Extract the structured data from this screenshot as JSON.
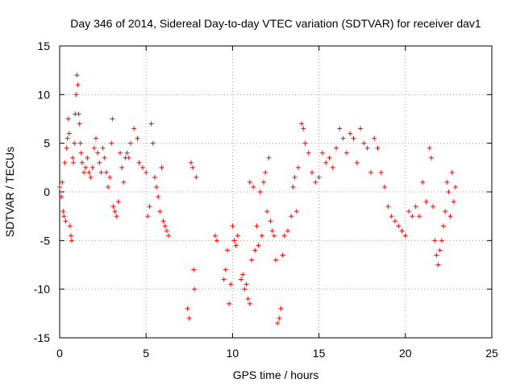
{
  "chart_data": {
    "type": "scatter",
    "title": "Day 346 of 2014, Sidereal Day-to-day VTEC variation (SDTVAR) for receiver dav1",
    "xlabel": "GPS time / hours",
    "ylabel": "SDTVAR / TECUs",
    "xlim": [
      0,
      25
    ],
    "ylim": [
      -15,
      15
    ],
    "xticks": [
      "0",
      "5",
      "10",
      "15",
      "20",
      "25"
    ],
    "yticks": [
      "-15",
      "-10",
      "-5",
      "0",
      "5",
      "10",
      "15"
    ],
    "grid": true,
    "marker": "+",
    "color": "#ff0000",
    "series": [
      {
        "name": "dav1",
        "points": [
          [
            0.0,
            0.5
          ],
          [
            0.1,
            -0.5
          ],
          [
            0.15,
            1.0
          ],
          [
            0.2,
            -2.0
          ],
          [
            0.25,
            -2.5
          ],
          [
            0.3,
            3.0
          ],
          [
            0.35,
            -3.0
          ],
          [
            0.4,
            4.5
          ],
          [
            0.45,
            5.5
          ],
          [
            0.5,
            7.5
          ],
          [
            0.55,
            6.0
          ],
          [
            0.6,
            -3.5
          ],
          [
            0.65,
            -4.5
          ],
          [
            0.7,
            -5.0
          ],
          [
            0.75,
            3.5
          ],
          [
            0.8,
            3.0
          ],
          [
            0.85,
            5.0
          ],
          [
            0.9,
            8.0
          ],
          [
            0.95,
            10.0
          ],
          [
            1.0,
            12.0
          ],
          [
            1.05,
            11.0
          ],
          [
            1.1,
            8.0
          ],
          [
            1.15,
            7.0
          ],
          [
            1.2,
            5.0
          ],
          [
            1.25,
            4.0
          ],
          [
            1.3,
            3.0
          ],
          [
            1.4,
            2.0
          ],
          [
            1.5,
            2.5
          ],
          [
            1.6,
            3.5
          ],
          [
            1.7,
            2.0
          ],
          [
            1.8,
            1.5
          ],
          [
            1.9,
            2.5
          ],
          [
            2.0,
            4.5
          ],
          [
            2.1,
            5.5
          ],
          [
            2.2,
            4.0
          ],
          [
            2.3,
            3.0
          ],
          [
            2.4,
            2.0
          ],
          [
            2.5,
            4.5
          ],
          [
            2.6,
            3.5
          ],
          [
            2.7,
            2.0
          ],
          [
            2.8,
            0.5
          ],
          [
            2.9,
            1.5
          ],
          [
            3.0,
            5.0
          ],
          [
            3.05,
            7.5
          ],
          [
            3.1,
            -1.5
          ],
          [
            3.2,
            -2.0
          ],
          [
            3.3,
            -2.5
          ],
          [
            3.4,
            -1.0
          ],
          [
            3.5,
            4.0
          ],
          [
            3.6,
            2.5
          ],
          [
            3.7,
            1.0
          ],
          [
            3.8,
            3.5
          ],
          [
            3.9,
            4.0
          ],
          [
            4.0,
            3.5
          ],
          [
            4.1,
            5.0
          ],
          [
            4.3,
            6.5
          ],
          [
            4.5,
            5.5
          ],
          [
            4.6,
            3.0
          ],
          [
            4.8,
            2.5
          ],
          [
            5.0,
            2.0
          ],
          [
            5.1,
            -2.5
          ],
          [
            5.2,
            -1.5
          ],
          [
            5.3,
            7.0
          ],
          [
            5.4,
            5.0
          ],
          [
            5.5,
            1.5
          ],
          [
            5.6,
            0.5
          ],
          [
            5.7,
            -0.5
          ],
          [
            5.8,
            -2.0
          ],
          [
            5.9,
            2.5
          ],
          [
            6.0,
            -3.0
          ],
          [
            6.1,
            -3.5
          ],
          [
            6.2,
            -4.0
          ],
          [
            6.3,
            -4.5
          ],
          [
            7.4,
            -12.0
          ],
          [
            7.5,
            -13.0
          ],
          [
            7.6,
            3.0
          ],
          [
            7.7,
            2.5
          ],
          [
            7.75,
            -8.0
          ],
          [
            7.8,
            -10.0
          ],
          [
            7.9,
            1.5
          ],
          [
            9.0,
            -4.5
          ],
          [
            9.1,
            -5.0
          ],
          [
            9.5,
            -9.0
          ],
          [
            9.6,
            -8.0
          ],
          [
            9.7,
            -6.0
          ],
          [
            9.8,
            -11.5
          ],
          [
            9.9,
            -9.5
          ],
          [
            10.0,
            -3.5
          ],
          [
            10.1,
            -5.0
          ],
          [
            10.2,
            -5.5
          ],
          [
            10.3,
            -4.5
          ],
          [
            10.5,
            -9.0
          ],
          [
            10.6,
            -8.5
          ],
          [
            10.7,
            -10.0
          ],
          [
            10.8,
            -9.5
          ],
          [
            10.9,
            -11.0
          ],
          [
            11.0,
            -11.5
          ],
          [
            11.0,
            1.0
          ],
          [
            11.1,
            -7.0
          ],
          [
            11.2,
            0.5
          ],
          [
            11.3,
            -6.0
          ],
          [
            11.4,
            -3.5
          ],
          [
            11.5,
            -5.5
          ],
          [
            11.6,
            0.0
          ],
          [
            11.7,
            -4.5
          ],
          [
            11.8,
            1.0
          ],
          [
            11.9,
            2.0
          ],
          [
            12.0,
            -2.0
          ],
          [
            12.1,
            3.5
          ],
          [
            12.2,
            -3.0
          ],
          [
            12.3,
            -4.0
          ],
          [
            12.4,
            -4.5
          ],
          [
            12.5,
            -7.0
          ],
          [
            12.6,
            -13.5
          ],
          [
            12.7,
            -13.0
          ],
          [
            12.8,
            -12.0
          ],
          [
            12.9,
            -6.5
          ],
          [
            13.0,
            -4.5
          ],
          [
            13.2,
            -4.0
          ],
          [
            13.4,
            -2.5
          ],
          [
            13.5,
            0.5
          ],
          [
            13.6,
            1.5
          ],
          [
            13.7,
            -2.0
          ],
          [
            13.8,
            2.5
          ],
          [
            14.0,
            7.0
          ],
          [
            14.1,
            6.5
          ],
          [
            14.2,
            5.0
          ],
          [
            14.4,
            4.0
          ],
          [
            14.6,
            2.0
          ],
          [
            14.8,
            1.0
          ],
          [
            15.0,
            1.5
          ],
          [
            15.2,
            4.0
          ],
          [
            15.4,
            3.0
          ],
          [
            15.6,
            3.5
          ],
          [
            15.8,
            2.5
          ],
          [
            16.0,
            4.5
          ],
          [
            16.2,
            6.5
          ],
          [
            16.4,
            5.5
          ],
          [
            16.6,
            4.0
          ],
          [
            16.8,
            6.0
          ],
          [
            17.0,
            5.5
          ],
          [
            17.2,
            3.0
          ],
          [
            17.4,
            6.5
          ],
          [
            17.6,
            5.0
          ],
          [
            17.8,
            4.5
          ],
          [
            18.0,
            2.0
          ],
          [
            18.2,
            5.5
          ],
          [
            18.4,
            4.5
          ],
          [
            18.6,
            2.0
          ],
          [
            18.8,
            0.5
          ],
          [
            19.0,
            -1.5
          ],
          [
            19.2,
            -2.5
          ],
          [
            19.4,
            -3.0
          ],
          [
            19.6,
            -3.5
          ],
          [
            19.8,
            -4.0
          ],
          [
            20.0,
            -4.5
          ],
          [
            20.2,
            -2.0
          ],
          [
            20.4,
            -2.5
          ],
          [
            20.6,
            -1.5
          ],
          [
            20.8,
            -2.5
          ],
          [
            21.0,
            1.0
          ],
          [
            21.2,
            -1.0
          ],
          [
            21.4,
            4.5
          ],
          [
            21.5,
            3.5
          ],
          [
            21.6,
            -1.5
          ],
          [
            21.7,
            -5.0
          ],
          [
            21.8,
            -6.5
          ],
          [
            21.9,
            -7.5
          ],
          [
            22.0,
            -6.0
          ],
          [
            22.1,
            -5.0
          ],
          [
            22.2,
            -3.5
          ],
          [
            22.3,
            -2.0
          ],
          [
            22.4,
            1.0
          ],
          [
            22.5,
            0.0
          ],
          [
            22.6,
            -2.5
          ],
          [
            22.7,
            2.0
          ],
          [
            22.8,
            -1.0
          ],
          [
            22.9,
            0.5
          ]
        ]
      }
    ]
  }
}
